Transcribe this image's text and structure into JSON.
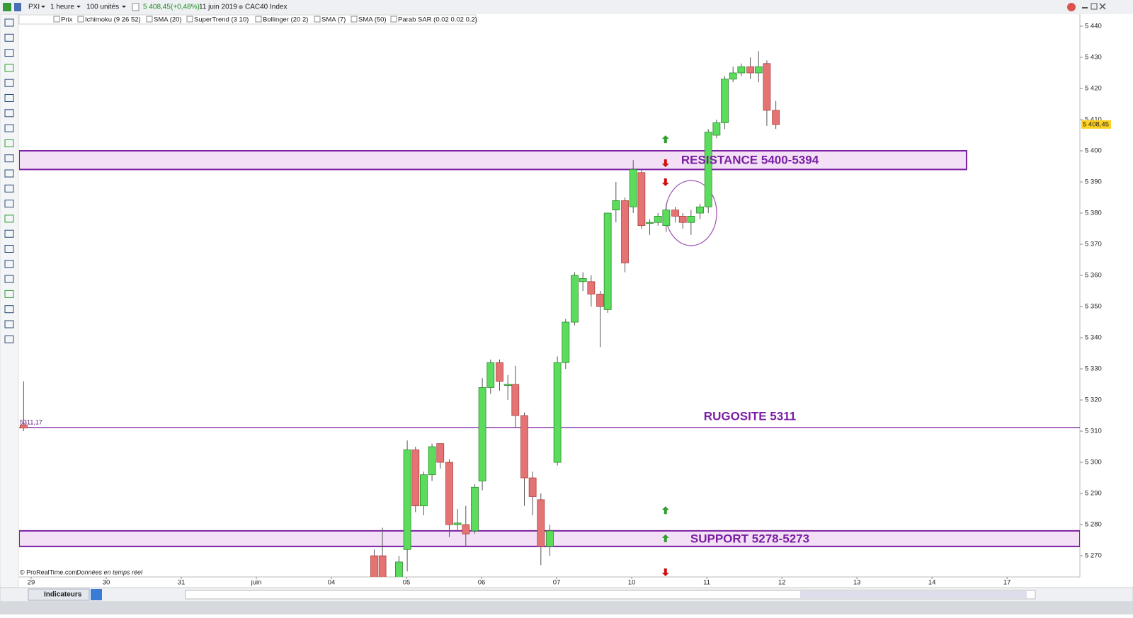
{
  "toolbar": {
    "symbol": "PXI",
    "interval": "1 heure",
    "units": "100 unités",
    "price": "5 408,45",
    "change": "(+0,48%)",
    "date": "11 juin 2019",
    "instrument": "CAC40 Index"
  },
  "indicators": [
    "Prix",
    "Ichimoku (9 26 52)",
    "SMA (20)",
    "SuperTrend (3 10)",
    "Bollinger (20 2)",
    "SMA (7)",
    "SMA (50)",
    "Parab SAR (0.02 0.02 0.2)"
  ],
  "footer": {
    "copyright": "© ProRealTime.com",
    "realtime": "Données en temps réel",
    "indicators_button": "Indicateurs"
  },
  "chart_data": {
    "type": "candlestick",
    "x": [
      -0.1,
      4.57,
      4.68,
      4.9,
      5.01,
      5.12,
      5.23,
      5.34,
      5.45,
      5.57,
      5.68,
      5.79,
      5.91,
      6.01,
      6.12,
      6.24,
      6.35,
      6.45,
      6.57,
      6.68,
      6.79,
      6.91,
      7.01,
      7.12,
      7.24,
      7.35,
      7.46,
      7.58,
      7.68,
      7.79,
      7.91,
      8.02,
      8.13,
      8.24,
      8.35,
      8.46,
      8.58,
      8.68,
      8.79,
      8.91,
      9.02,
      9.13,
      9.24,
      9.35,
      9.46,
      9.58,
      9.69,
      9.8,
      9.92
    ],
    "open": [
      5312,
      5270,
      5270,
      5262,
      5272,
      5304,
      5286,
      5296,
      5306,
      5300,
      5280,
      5280,
      5278,
      5294,
      5324,
      5332,
      5325,
      5325,
      5315,
      5295,
      5288,
      5273,
      5300,
      5332,
      5345,
      5358,
      5358,
      5354,
      5349,
      5381,
      5384,
      5382,
      5393,
      5377,
      5377,
      5376,
      5381,
      5379,
      5377,
      5380,
      5382,
      5405,
      5409,
      5423,
      5425,
      5427,
      5425,
      5428,
      5413
    ],
    "high": [
      5326,
      5272,
      5279,
      5270,
      5307,
      5305,
      5297,
      5306,
      5306,
      5301,
      5285,
      5286,
      5293,
      5327,
      5333,
      5333,
      5328,
      5331,
      5316,
      5297,
      5290,
      5280,
      5334,
      5346,
      5361,
      5361,
      5360,
      5355,
      5380,
      5390,
      5385,
      5397,
      5394,
      5378,
      5380,
      5383,
      5382,
      5380,
      5381,
      5383,
      5407,
      5410,
      5424,
      5427,
      5428,
      5430,
      5432,
      5429,
      5416
    ],
    "low": [
      5310,
      5260,
      5260,
      5260,
      5265,
      5284,
      5283,
      5294,
      5298,
      5276,
      5278,
      5273,
      5277,
      5291,
      5322,
      5323,
      5320,
      5311,
      5286,
      5283,
      5267,
      5270,
      5299,
      5330,
      5344,
      5355,
      5350,
      5337,
      5348,
      5377,
      5361,
      5380,
      5375,
      5373,
      5376,
      5374,
      5377,
      5375,
      5373,
      5378,
      5380,
      5404,
      5407,
      5422,
      5424,
      5423,
      5422,
      5408,
      5407
    ],
    "close": [
      5311,
      5262,
      5262,
      5268,
      5304,
      5286,
      5296,
      5305,
      5300,
      5280,
      5280.5,
      5277,
      5292,
      5324,
      5332,
      5326,
      5325,
      5315,
      5295,
      5289,
      5273,
      5278,
      5332,
      5345,
      5360,
      5359,
      5354,
      5350,
      5380,
      5384,
      5364,
      5394,
      5376,
      5377,
      5379,
      5381,
      5379,
      5377,
      5379,
      5382,
      5406,
      5409,
      5423,
      5425,
      5427,
      5425,
      5427,
      5413,
      5408.45
    ],
    "up_color": "#5cdc5c",
    "down_color": "#e57373",
    "xlim": [
      -0.16,
      13.97
    ],
    "xticks": [
      {
        "value": 0,
        "label": "29"
      },
      {
        "value": 1,
        "label": "30"
      },
      {
        "value": 2,
        "label": "31"
      },
      {
        "value": 3,
        "label": "juin"
      },
      {
        "value": 4,
        "label": "04"
      },
      {
        "value": 5,
        "label": "05"
      },
      {
        "value": 6,
        "label": "06"
      },
      {
        "value": 7,
        "label": "07"
      },
      {
        "value": 8,
        "label": "10"
      },
      {
        "value": 9,
        "label": "11"
      },
      {
        "value": 10,
        "label": "12"
      },
      {
        "value": 11,
        "label": "13"
      },
      {
        "value": 12,
        "label": "14"
      },
      {
        "value": 13,
        "label": "17"
      }
    ],
    "ylim": [
      5263.2,
      5440.45
    ],
    "yticks": [
      {
        "value": 5270,
        "label": "5 270"
      },
      {
        "value": 5280,
        "label": "5 280"
      },
      {
        "value": 5290,
        "label": "5 290"
      },
      {
        "value": 5300,
        "label": "5 300"
      },
      {
        "value": 5310,
        "label": "5 310"
      },
      {
        "value": 5320,
        "label": "5 320"
      },
      {
        "value": 5330,
        "label": "5 330"
      },
      {
        "value": 5340,
        "label": "5 340"
      },
      {
        "value": 5350,
        "label": "5 350"
      },
      {
        "value": 5360,
        "label": "5 360"
      },
      {
        "value": 5370,
        "label": "5 370"
      },
      {
        "value": 5380,
        "label": "5 380"
      },
      {
        "value": 5390,
        "label": "5 390"
      },
      {
        "value": 5400,
        "label": "5 400"
      },
      {
        "value": 5410,
        "label": "5 410"
      },
      {
        "value": 5420,
        "label": "5 420"
      },
      {
        "value": 5430,
        "label": "5 430"
      },
      {
        "value": 5440,
        "label": "5 440"
      }
    ],
    "last_price": {
      "value": 5408.45,
      "label": "5 408,45"
    },
    "zones": [
      {
        "label": "RESISTANCE 5400-5394",
        "low": 5394,
        "high": 5400,
        "x_end": 12.46
      },
      {
        "label": "SUPPORT 5278-5273",
        "low": 5273,
        "high": 5278
      }
    ],
    "level": {
      "value": 5311.17,
      "label": "5311,17",
      "annotation": "RUGOSITE 5311"
    },
    "zone_color": "#7a1fa2",
    "signals": [
      {
        "x": 8.45,
        "y": 5403.6,
        "color": "#2e9e2e"
      },
      {
        "x": 8.45,
        "y": 5396.1,
        "color": "#d01010"
      },
      {
        "x": 8.45,
        "y": 5390,
        "color": "#d01010"
      },
      {
        "x": 8.45,
        "y": 5284.5,
        "color": "#2e9e2e"
      },
      {
        "x": 8.45,
        "y": 5275.5,
        "color": "#2e9e2e"
      },
      {
        "x": 8.45,
        "y": 5264.8,
        "color": "#d01010"
      }
    ]
  }
}
